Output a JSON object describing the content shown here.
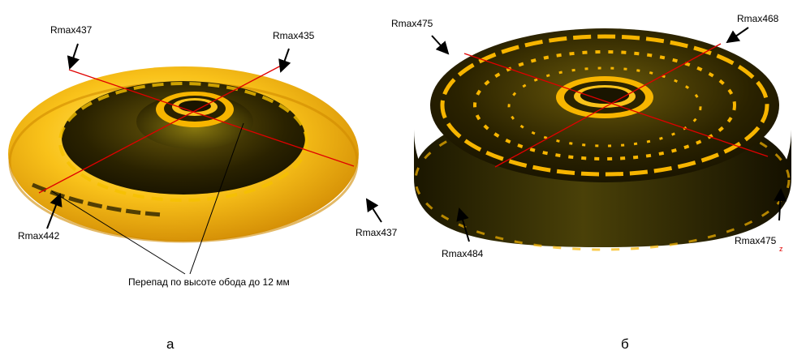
{
  "figure_a": {
    "labels": {
      "top_left": "Rmax437",
      "top_right": "Rmax435",
      "bottom_left": "Rmax442",
      "bottom_right": "Rmax437"
    },
    "annotation": "Перепад по высоте обода до 12 мм",
    "caption": "а"
  },
  "figure_b": {
    "labels": {
      "top_left": "Rmax475",
      "top_right": "Rmax468",
      "bottom_left": "Rmax484",
      "bottom_right": "Rmax475"
    },
    "axis_letter": "z",
    "caption": "б"
  },
  "colors": {
    "surface_yellow": "#f7b500",
    "surface_dark": "#2a2200",
    "section_line": "#e00000"
  }
}
